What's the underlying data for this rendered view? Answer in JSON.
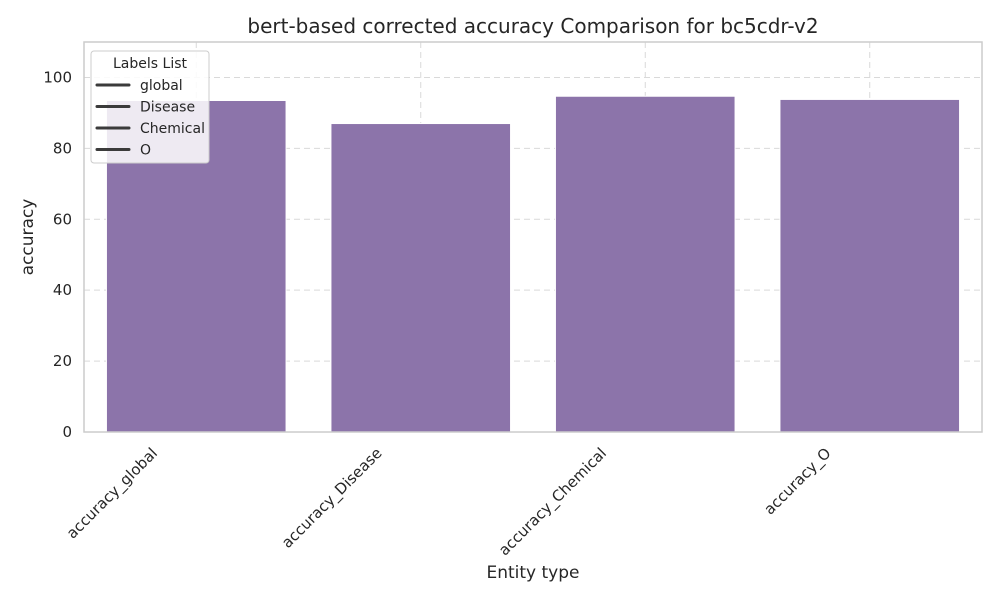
{
  "chart_data": {
    "type": "bar",
    "title": "bert-based corrected accuracy Comparison for bc5cdr-v2",
    "xlabel": "Entity type",
    "ylabel": "accuracy",
    "categories": [
      "accuracy_global",
      "accuracy_Disease",
      "accuracy_Chemical",
      "accuracy_O"
    ],
    "values": [
      93.5,
      87.0,
      94.7,
      93.8
    ],
    "ylim": [
      0,
      110
    ],
    "yticks": [
      0,
      20,
      40,
      60,
      80,
      100
    ],
    "grid": true,
    "bar_color": "#8c74aa",
    "legend": {
      "title": "Labels List",
      "placement": "top-left",
      "entries": [
        "global",
        "Disease",
        "Chemical",
        "O"
      ]
    }
  }
}
